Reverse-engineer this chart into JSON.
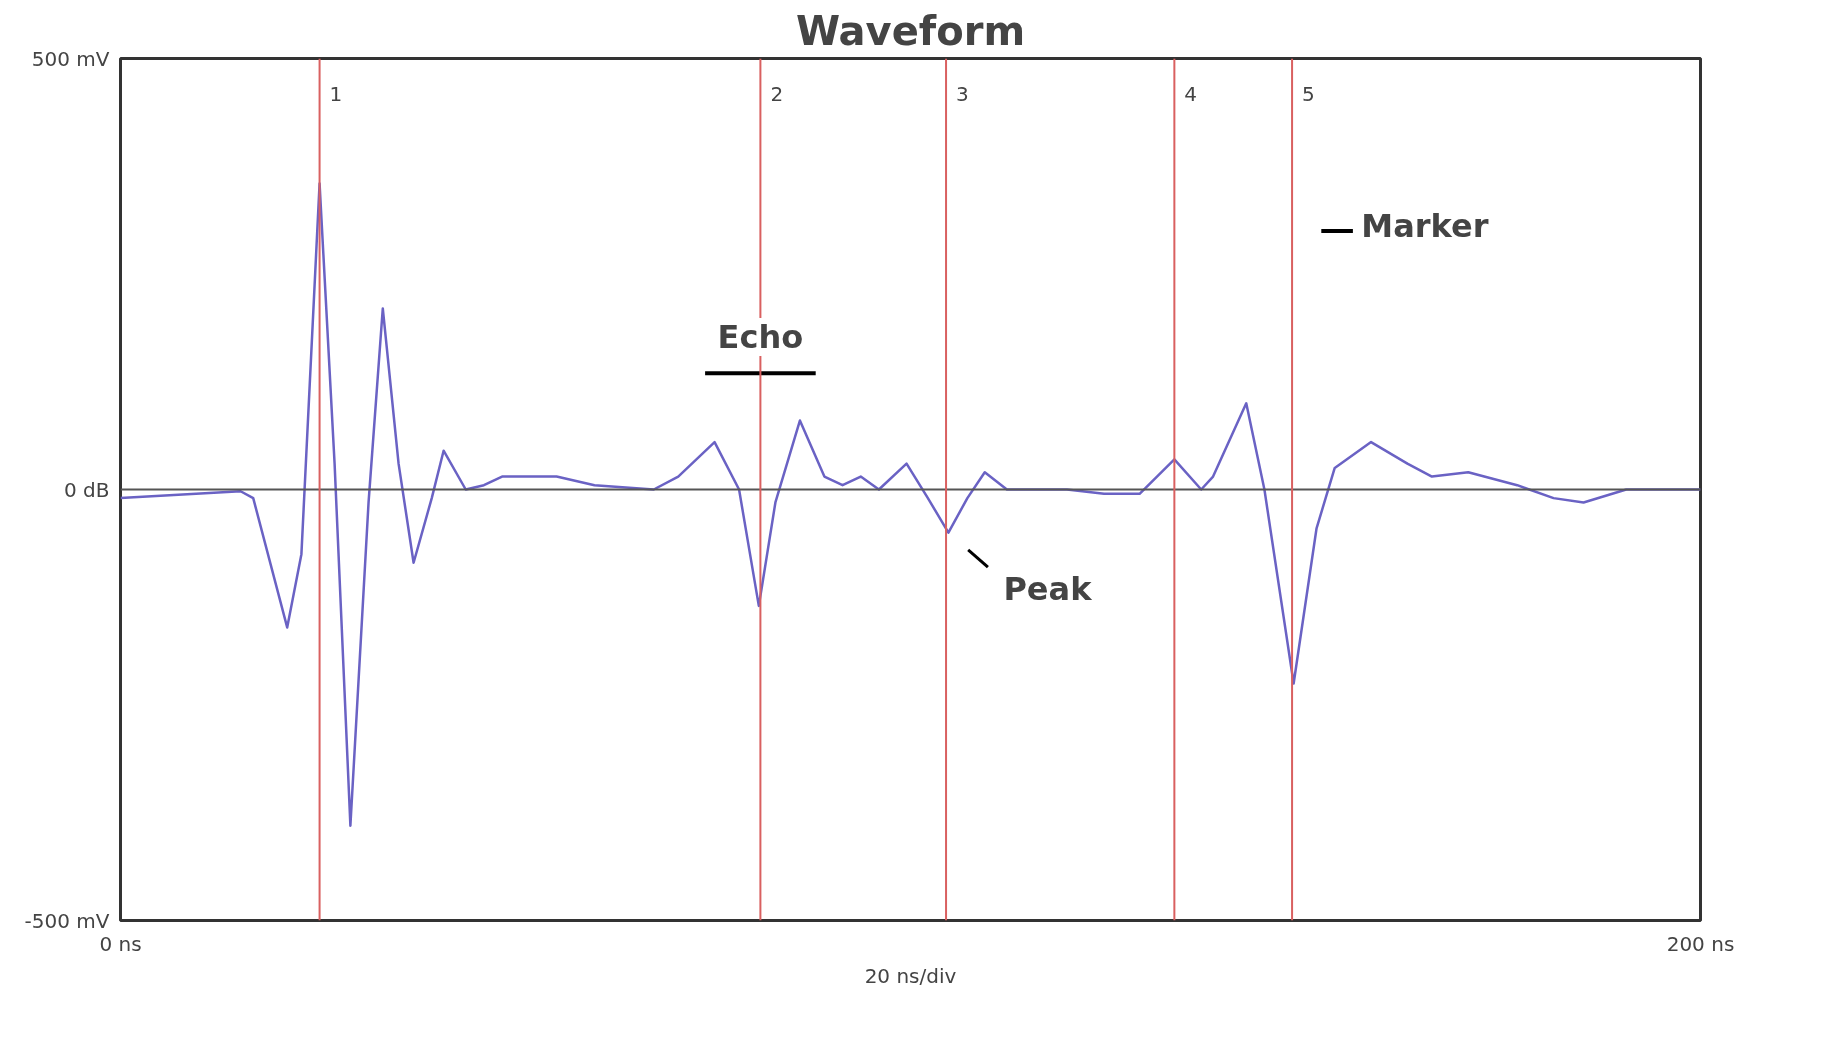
{
  "chart_data": {
    "type": "line",
    "title": "Waveform",
    "xlabel": "20 ns/div",
    "x": [
      0,
      15.2,
      16.8,
      21.1,
      22.9,
      25.2,
      27.1,
      29.1,
      31.4,
      33.2,
      35.2,
      37.1,
      39.4,
      40.9,
      43.7,
      46,
      48.3,
      55.2,
      60,
      67.5,
      70.6,
      75.2,
      78.3,
      80.8,
      82.9,
      86,
      89.1,
      91.4,
      93.7,
      96,
      99.5,
      102.2,
      104.8,
      107.2,
      109.4,
      112.2,
      119.8,
      124.5,
      129,
      133.4,
      136.8,
      138.3,
      142.5,
      144.8,
      148.5,
      151.4,
      153.7,
      158.3,
      162.9,
      166,
      170.6,
      176.8,
      181.4,
      185.2,
      190.6,
      200
    ],
    "series": [
      {
        "color": "#6a62c4",
        "values": [
          -10,
          -2,
          -10,
          -160,
          -75,
          355,
          30,
          -390,
          -15,
          210,
          30,
          -85,
          -10,
          45,
          0,
          5,
          15,
          15,
          5,
          0,
          15,
          55,
          0,
          -135,
          -15,
          80,
          15,
          5,
          15,
          0,
          30,
          -10,
          -50,
          -10,
          20,
          0,
          0,
          -5,
          -5,
          35,
          0,
          15,
          100,
          0,
          -225,
          -45,
          25,
          55,
          30,
          15,
          20,
          5,
          -10,
          -15,
          0,
          0
        ]
      }
    ],
    "xlim": [
      0,
      200
    ],
    "ylim": [
      -500,
      500
    ],
    "xticks": [
      {
        "value": 0,
        "label": "0 ns"
      },
      {
        "value": 200,
        "label": "200 ns"
      }
    ],
    "yticks": [
      {
        "value": -500,
        "label": "-500 mV"
      },
      {
        "value": 0,
        "label": "0 dB"
      },
      {
        "value": 500,
        "label": "500 mV"
      }
    ],
    "ref_lines": [
      {
        "axis": "y",
        "value": 0,
        "color": "#555555"
      },
      {
        "axis": "x",
        "value": 25.2,
        "color": "#d96060"
      },
      {
        "axis": "x",
        "value": 81,
        "color": "#d96060"
      },
      {
        "axis": "x",
        "value": 104.5,
        "color": "#d96060"
      },
      {
        "axis": "x",
        "value": 133.4,
        "color": "#d96060"
      },
      {
        "axis": "x",
        "value": 148.3,
        "color": "#d96060"
      }
    ],
    "annotations": [
      {
        "text": "1",
        "x": 25.2,
        "y": 500
      },
      {
        "text": "2",
        "x": 81,
        "y": 500
      },
      {
        "text": "3",
        "x": 104.5,
        "y": 500
      },
      {
        "text": "4",
        "x": 133.4,
        "y": 500
      },
      {
        "text": "5",
        "x": 148.3,
        "y": 500
      },
      {
        "text": "Echo",
        "x": 81,
        "y": 120
      },
      {
        "text": "Peak",
        "x": 104.8,
        "y": -50
      },
      "Marker"
    ],
    "line_style": "solid"
  }
}
